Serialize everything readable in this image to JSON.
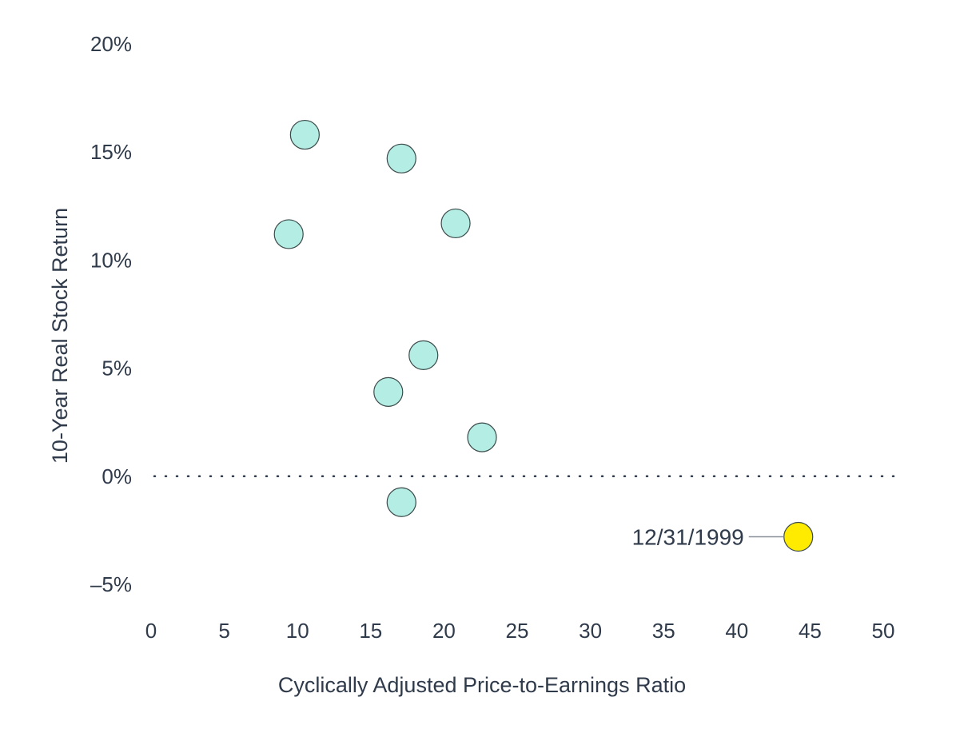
{
  "chart_data": {
    "type": "scatter",
    "xlabel": "Cyclically Adjusted Price-to-Earnings Ratio",
    "ylabel": "10-Year Real Stock Return",
    "xlim": [
      0,
      50
    ],
    "ylim": [
      -5,
      20
    ],
    "x_ticks": [
      {
        "value": 0,
        "label": "0"
      },
      {
        "value": 5,
        "label": "5"
      },
      {
        "value": 10,
        "label": "10"
      },
      {
        "value": 15,
        "label": "15"
      },
      {
        "value": 20,
        "label": "20"
      },
      {
        "value": 25,
        "label": "25"
      },
      {
        "value": 30,
        "label": "30"
      },
      {
        "value": 35,
        "label": "35"
      },
      {
        "value": 40,
        "label": "40"
      },
      {
        "value": 45,
        "label": "45"
      },
      {
        "value": 50,
        "label": "50"
      }
    ],
    "y_ticks": [
      {
        "value": 20,
        "label": "20%"
      },
      {
        "value": 15,
        "label": "15%"
      },
      {
        "value": 10,
        "label": "10%"
      },
      {
        "value": 5,
        "label": "5%"
      },
      {
        "value": 0,
        "label": "0%"
      },
      {
        "value": -5,
        "label": "–5%"
      }
    ],
    "zero_line": {
      "value": 0,
      "style": "dotted"
    },
    "grid": false,
    "colors": {
      "points": "#b3ede3",
      "highlight": "#ffeb00",
      "text": "#2f3a4a"
    },
    "series": [
      {
        "points": [
          {
            "x": 9.4,
            "y": 11.2
          },
          {
            "x": 10.5,
            "y": 15.8
          },
          {
            "x": 16.2,
            "y": 3.9
          },
          {
            "x": 17.1,
            "y": 14.7
          },
          {
            "x": 17.1,
            "y": -1.2
          },
          {
            "x": 18.6,
            "y": 5.6
          },
          {
            "x": 20.8,
            "y": 11.7
          },
          {
            "x": 22.6,
            "y": 1.8
          }
        ]
      },
      {
        "highlight": true,
        "points": [
          {
            "x": 44.2,
            "y": -2.8,
            "label": "12/31/1999"
          }
        ]
      }
    ]
  }
}
